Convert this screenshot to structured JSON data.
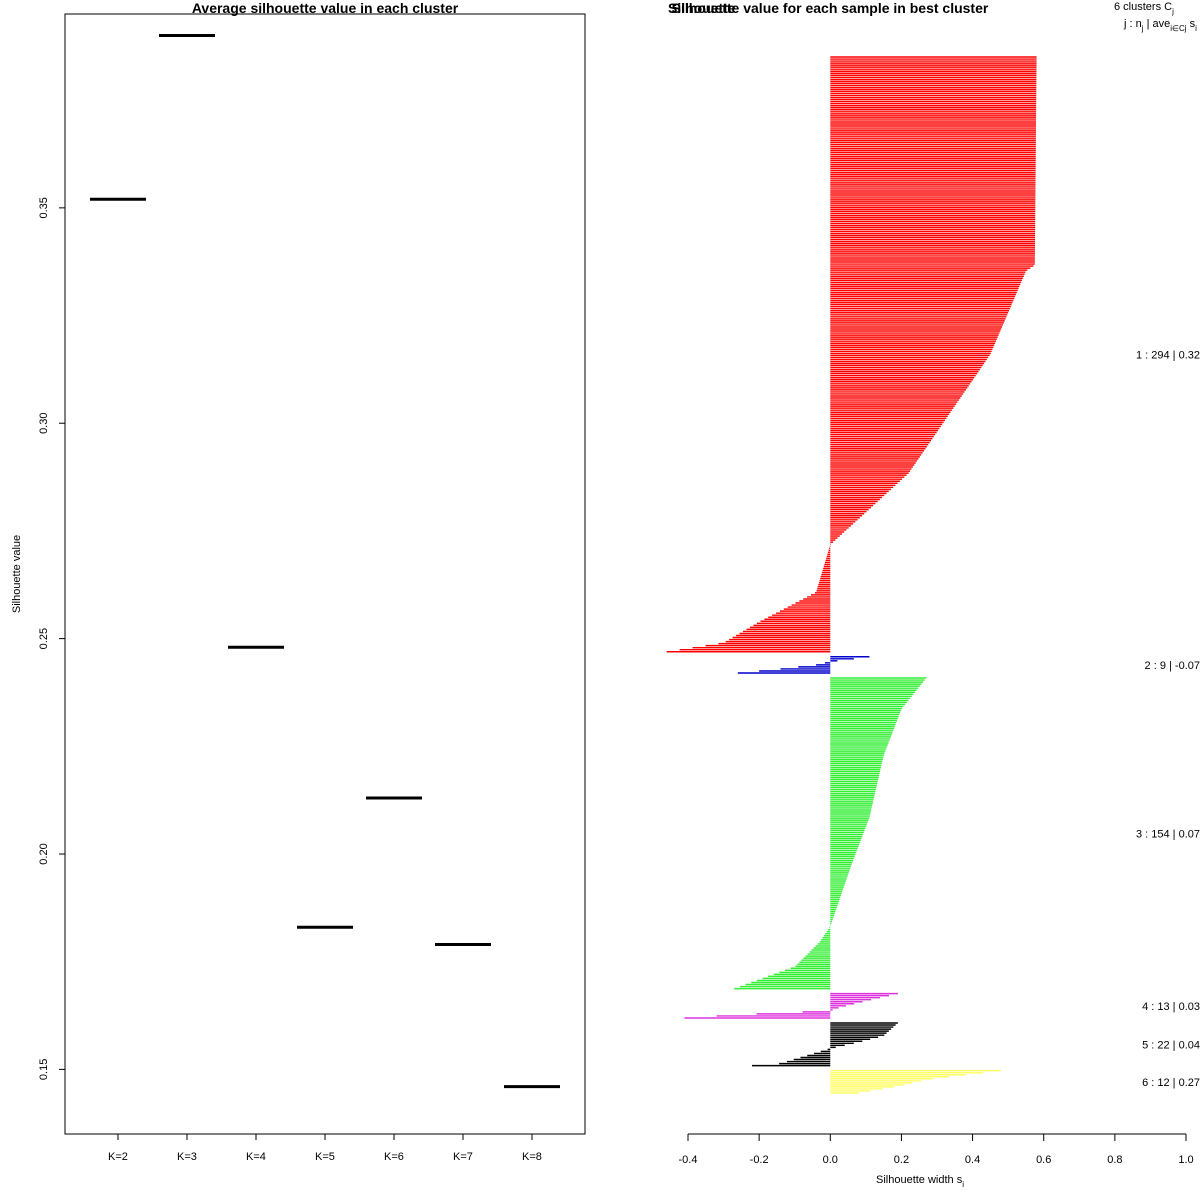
{
  "chart_data": [
    {
      "type": "line",
      "title": "Average silhouette value in each cluster",
      "xlabel": "",
      "ylabel": "Silhouette value",
      "categories": [
        "K=2",
        "K=3",
        "K=4",
        "K=5",
        "K=6",
        "K=7",
        "K=8"
      ],
      "values": [
        0.352,
        0.39,
        0.248,
        0.183,
        0.213,
        0.179,
        0.146
      ],
      "ylim": [
        0.135,
        0.395
      ],
      "yticks": [
        0.15,
        0.2,
        0.25,
        0.3,
        0.35
      ],
      "ytick_labels": [
        "0.15",
        "0.20",
        "0.25",
        "0.30",
        "0.35"
      ],
      "grid": false
    },
    {
      "type": "bar",
      "title": "Silhouette value for each sample in best cluster",
      "overlapped_title_text": "Silhouette",
      "xlabel": "Silhouette width s",
      "xlabel_subscript": "i",
      "xlim": [
        -0.4,
        1.0
      ],
      "xticks": [
        -0.4,
        -0.2,
        0.0,
        0.2,
        0.4,
        0.6,
        0.8,
        1.0
      ],
      "xtick_labels": [
        "-0.4",
        "-0.2",
        "0.0",
        "0.2",
        "0.4",
        "0.6",
        "0.8",
        "1.0"
      ],
      "header": {
        "line1": "6 clusters C",
        "line1_sub": "j",
        "line2_a": "j : n",
        "line2_a_sub": "j",
        "line2_b": " | ave",
        "line2_b_sub": "i∈Cj",
        "line2_c": " s",
        "line2_c_sub": "i"
      },
      "series": [
        {
          "name": "1",
          "n": 294,
          "avg": 0.32,
          "color": "#ff0000",
          "label": "1 :  294  |  0.32",
          "max": 0.58,
          "min": -0.46,
          "knots": [
            [
              0,
              0.58
            ],
            [
              0.35,
              0.575
            ],
            [
              0.36,
              0.55
            ],
            [
              0.5,
              0.45
            ],
            [
              0.7,
              0.22
            ],
            [
              0.82,
              0.0
            ],
            [
              0.9,
              -0.04
            ],
            [
              0.95,
              -0.2
            ],
            [
              0.985,
              -0.3
            ],
            [
              1.0,
              -0.46
            ]
          ]
        },
        {
          "name": "2",
          "n": 9,
          "avg": -0.07,
          "color": "#0000cc",
          "label": "2 :  9  |  -0.07",
          "max": 0.11,
          "min": -0.26,
          "knots": [
            [
              0,
              0.11
            ],
            [
              0.2,
              0.04
            ],
            [
              0.3,
              0.0
            ],
            [
              0.5,
              -0.04
            ],
            [
              0.75,
              -0.14
            ],
            [
              1.0,
              -0.26
            ]
          ]
        },
        {
          "name": "3",
          "n": 154,
          "avg": 0.07,
          "color": "#33ee33",
          "label": "3 :  154  |  0.07",
          "max": 0.27,
          "min": -0.27,
          "knots": [
            [
              0,
              0.27
            ],
            [
              0.1,
              0.2
            ],
            [
              0.25,
              0.15
            ],
            [
              0.45,
              0.11
            ],
            [
              0.6,
              0.06
            ],
            [
              0.8,
              0.0
            ],
            [
              0.85,
              -0.03
            ],
            [
              0.93,
              -0.1
            ],
            [
              1.0,
              -0.27
            ]
          ]
        },
        {
          "name": "4",
          "n": 13,
          "avg": 0.03,
          "color": "#dd33dd",
          "label": "4 :  13  |  0.03",
          "max": 0.19,
          "min": -0.41,
          "knots": [
            [
              0,
              0.19
            ],
            [
              0.3,
              0.1
            ],
            [
              0.55,
              0.03
            ],
            [
              0.7,
              0.0
            ],
            [
              0.88,
              -0.28
            ],
            [
              1.0,
              -0.41
            ]
          ]
        },
        {
          "name": "5",
          "n": 22,
          "avg": 0.04,
          "color": "#000000",
          "label": "5 :  22  |  0.04",
          "max": 0.19,
          "min": -0.22,
          "knots": [
            [
              0,
              0.19
            ],
            [
              0.3,
              0.15
            ],
            [
              0.45,
              0.08
            ],
            [
              0.6,
              0.0
            ],
            [
              0.8,
              -0.08
            ],
            [
              0.95,
              -0.14
            ],
            [
              1.0,
              -0.22
            ]
          ]
        },
        {
          "name": "6",
          "n": 12,
          "avg": 0.27,
          "color": "#ffff66",
          "label": "6 :  12  |  0.27",
          "max": 0.48,
          "min": 0.08,
          "knots": [
            [
              0,
              0.48
            ],
            [
              0.2,
              0.37
            ],
            [
              0.4,
              0.27
            ],
            [
              0.7,
              0.19
            ],
            [
              1.0,
              0.08
            ]
          ]
        }
      ]
    }
  ]
}
